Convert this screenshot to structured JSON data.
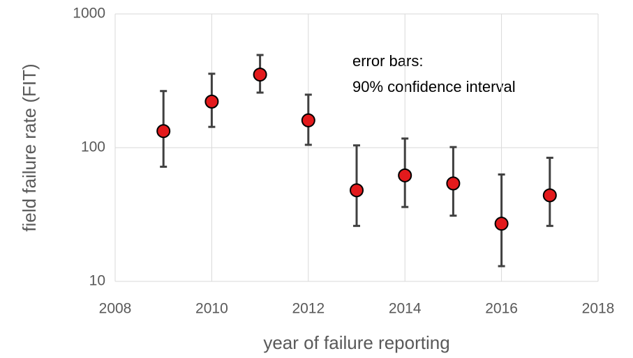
{
  "chart_data": {
    "type": "scatter",
    "xlabel": "year of failure reporting",
    "ylabel": "field failure rate (FIT)",
    "annotations": [
      "error bars:",
      "90% confidence interval"
    ],
    "x": [
      2009,
      2010,
      2011,
      2012,
      2013,
      2014,
      2015,
      2016,
      2017
    ],
    "series": [
      {
        "color": "#e31a1c",
        "values": [
          133,
          221,
          352,
          160,
          48,
          62,
          54,
          27,
          44
        ],
        "lower": [
          72,
          143,
          258,
          105,
          26,
          36,
          31,
          13,
          26
        ],
        "upper": [
          265,
          357,
          493,
          249,
          104,
          117,
          101,
          63,
          84
        ]
      }
    ],
    "xlim": [
      2008,
      2018
    ],
    "xticks": [
      2008,
      2010,
      2012,
      2014,
      2016,
      2018
    ],
    "ylim": [
      10,
      1000
    ],
    "yticks": [
      10,
      100,
      1000
    ],
    "ylog": true,
    "grid": true
  }
}
